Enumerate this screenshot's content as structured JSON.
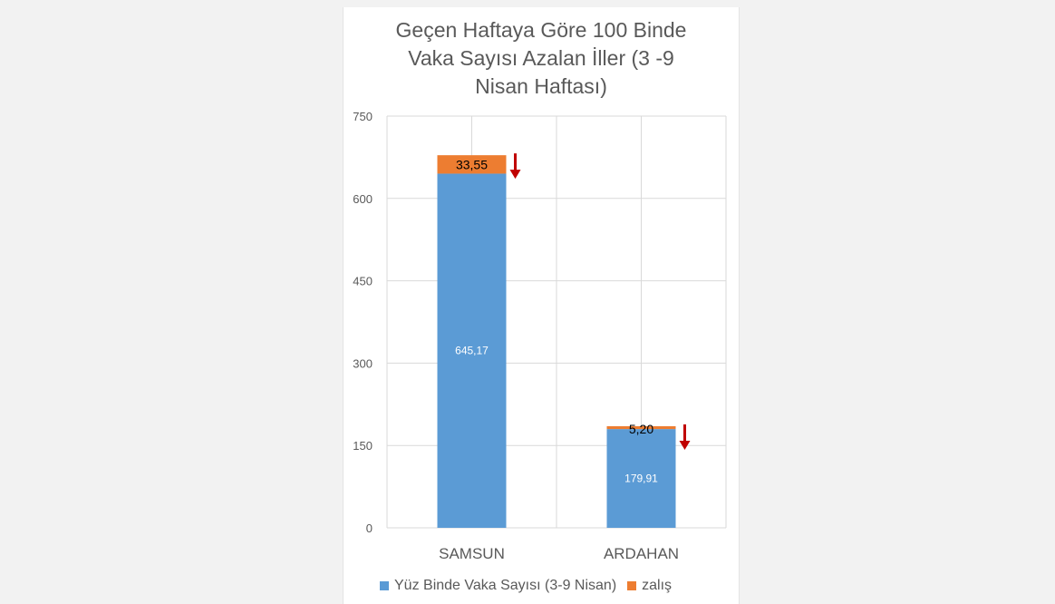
{
  "colors": {
    "series_base": "#5b9bd5",
    "series_decrease": "#ed7d31",
    "arrow": "#c00000",
    "grid": "#d9d9d9",
    "background": "#f2f2f2",
    "panel": "#ffffff"
  },
  "chart_data": {
    "type": "bar",
    "stacked": true,
    "title": "Geçen Haftaya Göre 100 Binde\nVaka Sayısı Azalan İller (3 -9\nNisan Haftası)",
    "categories": [
      "SAMSUN",
      "ARDAHAN"
    ],
    "series": [
      {
        "name": "Yüz Binde Vaka Sayısı (3-9 Nisan)",
        "values": [
          645.17,
          179.91
        ],
        "labels": [
          "645,17",
          "179,91"
        ]
      },
      {
        "name": "zalış",
        "values": [
          33.55,
          5.2
        ],
        "labels": [
          "33,55",
          "5,20"
        ]
      }
    ],
    "ylim": [
      0,
      750
    ],
    "yticks": [
      0,
      150,
      300,
      450,
      600,
      750
    ],
    "grid": true,
    "legend_position": "bottom",
    "markers": [
      "down-arrow",
      "down-arrow"
    ]
  }
}
